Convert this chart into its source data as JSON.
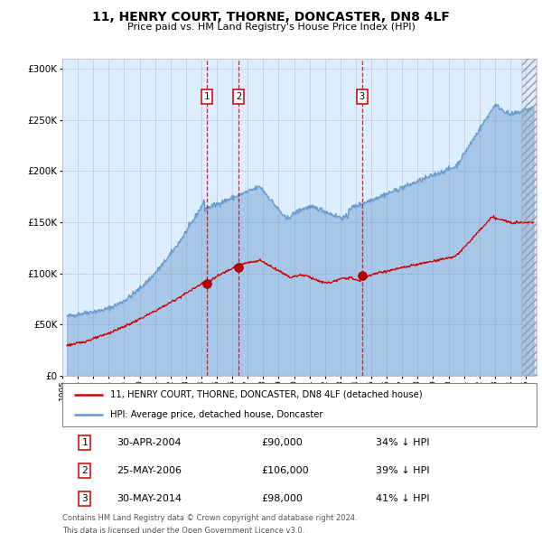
{
  "title": "11, HENRY COURT, THORNE, DONCASTER, DN8 4LF",
  "subtitle": "Price paid vs. HM Land Registry's House Price Index (HPI)",
  "legend_line1": "11, HENRY COURT, THORNE, DONCASTER, DN8 4LF (detached house)",
  "legend_line2": "HPI: Average price, detached house, Doncaster",
  "footer1": "Contains HM Land Registry data © Crown copyright and database right 2024.",
  "footer2": "This data is licensed under the Open Government Licence v3.0.",
  "transactions": [
    {
      "num": "1",
      "date": "30-APR-2004",
      "date_decimal": 2004.33,
      "price": 90000,
      "price_str": "£90,000",
      "label": "34% ↓ HPI"
    },
    {
      "num": "2",
      "date": "25-MAY-2006",
      "date_decimal": 2006.4,
      "price": 106000,
      "price_str": "£106,000",
      "label": "39% ↓ HPI"
    },
    {
      "num": "3",
      "date": "30-MAY-2014",
      "date_decimal": 2014.41,
      "price": 98000,
      "price_str": "£98,000",
      "label": "41% ↓ HPI"
    }
  ],
  "hpi_color": "#6699cc",
  "hpi_fill_color": "#aabbdd",
  "price_color": "#cc0000",
  "background_fill": "#ddeeff",
  "grid_color": "#bbbbcc",
  "ylim": [
    0,
    310000
  ],
  "yticks": [
    0,
    50000,
    100000,
    150000,
    200000,
    250000,
    300000
  ],
  "xlim_start": 1995.3,
  "xlim_end": 2025.7,
  "xticks": [
    1995,
    1996,
    1997,
    1998,
    1999,
    2000,
    2001,
    2002,
    2003,
    2004,
    2005,
    2006,
    2007,
    2008,
    2009,
    2010,
    2011,
    2012,
    2013,
    2014,
    2015,
    2016,
    2017,
    2018,
    2019,
    2020,
    2021,
    2022,
    2023,
    2024,
    2025
  ]
}
